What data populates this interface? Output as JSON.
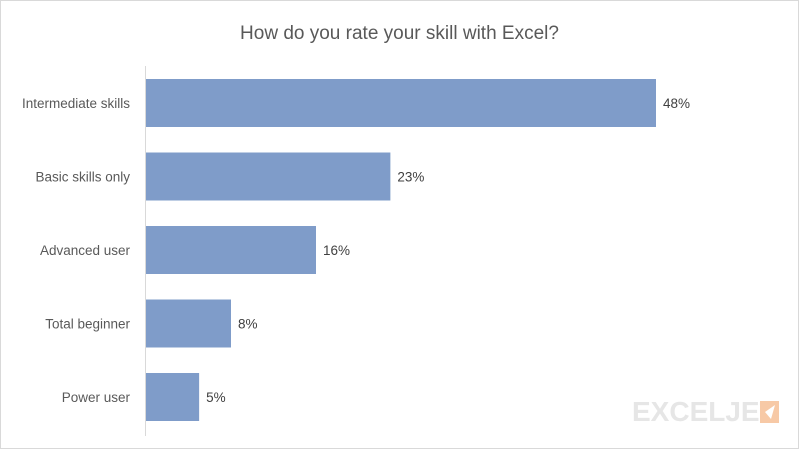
{
  "chart_data": {
    "type": "bar",
    "orientation": "horizontal",
    "title": "How do you rate your skill with Excel?",
    "categories": [
      "Intermediate skills",
      "Basic skills only",
      "Advanced user",
      "Total beginner",
      "Power user"
    ],
    "values": [
      48,
      23,
      16,
      8,
      5
    ],
    "data_labels": [
      "48%",
      "23%",
      "16%",
      "8%",
      "5%"
    ],
    "xlim": [
      0,
      50
    ],
    "grid": false,
    "bar_color": "#7f9cc9"
  },
  "watermark": {
    "text": "EXCELJET",
    "color": "#e6e6e6",
    "accent_color": "#f7c9a6",
    "icon": "exceljet-flag-icon"
  }
}
